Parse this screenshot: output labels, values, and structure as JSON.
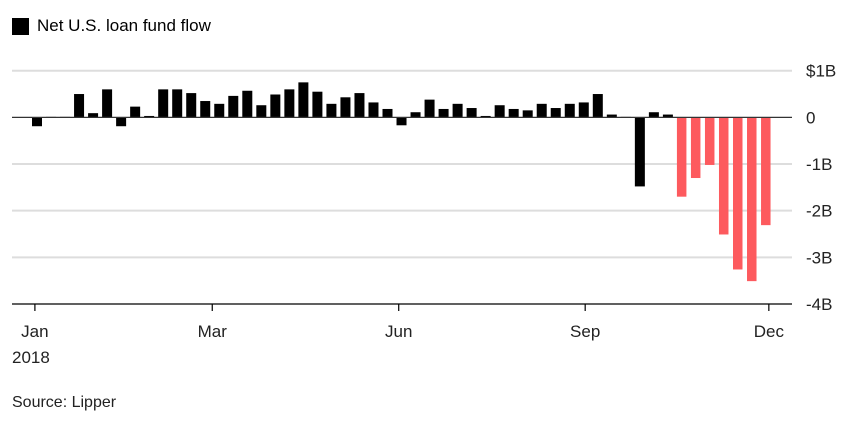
{
  "chart_data": {
    "type": "bar",
    "title": "Net U.S. loan fund flow",
    "legend": [
      {
        "label": "Net U.S. loan fund flow",
        "color": "#000000"
      }
    ],
    "legend_position": "top-left",
    "xlabel": "",
    "ylabel": "",
    "unit": "billions USD",
    "x": [
      1,
      2,
      3,
      4,
      5,
      6,
      7,
      8,
      9,
      10,
      11,
      12,
      13,
      14,
      15,
      16,
      17,
      18,
      19,
      20,
      21,
      22,
      23,
      24,
      25,
      26,
      27,
      28,
      29,
      30,
      31,
      32,
      33,
      34,
      35,
      36,
      37,
      38,
      39,
      40,
      41,
      42,
      43,
      44,
      45,
      46,
      47,
      48,
      49,
      50,
      51,
      52,
      53
    ],
    "values": [
      -0.19,
      0.01,
      0.01,
      0.5,
      0.09,
      0.6,
      -0.19,
      0.23,
      0.03,
      0.6,
      0.6,
      0.52,
      0.35,
      0.29,
      0.46,
      0.57,
      0.26,
      0.49,
      0.6,
      0.75,
      0.55,
      0.29,
      0.43,
      0.52,
      0.32,
      0.18,
      -0.17,
      0.11,
      0.38,
      0.18,
      0.29,
      0.2,
      0.03,
      0.26,
      0.18,
      0.15,
      0.29,
      0.2,
      0.29,
      0.32,
      0.5,
      0.06,
      0.01,
      -1.48,
      0.11,
      0.06,
      -1.7,
      -1.3,
      -1.02,
      -2.51,
      -3.26,
      -3.51,
      -2.31
    ],
    "highlight_from_index": 46,
    "colors": {
      "default": "#000000",
      "highlight": "#fd5a5e",
      "grid": "#dddddd",
      "axis": "#333333"
    },
    "ylim": [
      -4,
      1
    ],
    "yticks": [
      1,
      0,
      -1,
      -2,
      -3,
      -4
    ],
    "ytick_labels": [
      "$1B",
      "0",
      "-1B",
      "-2B",
      "-3B",
      "-4B"
    ],
    "xticks": [
      {
        "week": 0.85,
        "label": "Jan",
        "sublabel": "2018"
      },
      {
        "week": 13.5,
        "label": "Mar"
      },
      {
        "week": 26.8,
        "label": "Jun"
      },
      {
        "week": 40.1,
        "label": "Sep"
      },
      {
        "week": 53.2,
        "label": "Dec"
      }
    ],
    "grid": true
  },
  "source": "Source: Lipper"
}
